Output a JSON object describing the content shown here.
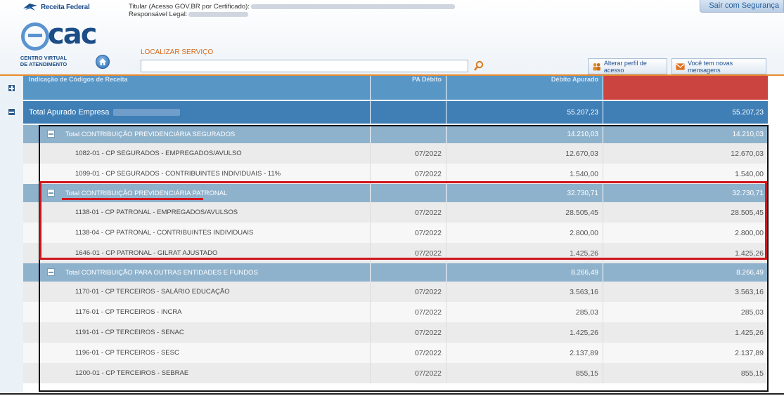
{
  "header": {
    "brand": "Receita Federal",
    "titular_label": "Titular (Acesso GOV.BR por Certificado):",
    "responsavel_label": "Responsável Legal:",
    "logout_label": "Sair com Segurança",
    "logo_text": "cac",
    "logo_sub_line1": "CENTRO VIRTUAL",
    "logo_sub_line2": "DE ATENDIMENTO",
    "search_label": "LOCALIZAR SERVIÇO",
    "search_value": "",
    "btn_perfil": "Alterar perfil de acesso",
    "btn_msg": "Você tem novas mensagens"
  },
  "table": {
    "columns": [
      "Indicação de Códigos de Receita",
      "PA Débito",
      "Débito Apurado",
      ""
    ],
    "total": {
      "label": "Total Apurado Empresa",
      "c3": "55.207,23",
      "c4": "55.207,23"
    },
    "groups": [
      {
        "label": "Total CONTRIBUIÇÃO PREVIDENCIÁRIA SEGURADOS",
        "c3": "14.210,03",
        "c4": "14.210,03",
        "items": [
          {
            "label": "1082-01 - CP SEGURADOS - EMPREGADOS/AVULSO",
            "pa": "07/2022",
            "c3": "12.670,03",
            "c4": "12.670,03"
          },
          {
            "label": "1099-01 - CP SEGURADOS - CONTRIBUINTES INDIVIDUAIS - 11%",
            "pa": "07/2022",
            "c3": "1.540,00",
            "c4": "1.540,00"
          }
        ]
      },
      {
        "label": "Total CONTRIBUIÇÃO PREVIDENCIÁRIA PATRONAL",
        "c3": "32.730,71",
        "c4": "32.730,71",
        "items": [
          {
            "label": "1138-01 - CP PATRONAL - EMPREGADOS/AVULSOS",
            "pa": "07/2022",
            "c3": "28.505,45",
            "c4": "28.505,45"
          },
          {
            "label": "1138-04 - CP PATRONAL - CONTRIBUINTES INDIVIDUAIS",
            "pa": "07/2022",
            "c3": "2.800,00",
            "c4": "2.800,00"
          },
          {
            "label": "1646-01 - CP PATRONAL - GILRAT AJUSTADO",
            "pa": "07/2022",
            "c3": "1.425,26",
            "c4": "1.425,26"
          }
        ]
      },
      {
        "label": "Total CONTRIBUIÇÃO PARA OUTRAS ENTIDADES E FUNDOS",
        "c3": "8.266,49",
        "c4": "8.266,49",
        "items": [
          {
            "label": "1170-01 - CP TERCEIROS - SALÁRIO EDUCAÇÃO",
            "pa": "07/2022",
            "c3": "3.563,16",
            "c4": "3.563,16"
          },
          {
            "label": "1176-01 - CP TERCEIROS - INCRA",
            "pa": "07/2022",
            "c3": "285,03",
            "c4": "285,03"
          },
          {
            "label": "1191-01 - CP TERCEIROS - SENAC",
            "pa": "07/2022",
            "c3": "1.425,26",
            "c4": "1.425,26"
          },
          {
            "label": "1196-01 - CP TERCEIROS - SESC",
            "pa": "07/2022",
            "c3": "2.137,89",
            "c4": "2.137,89"
          },
          {
            "label": "1200-01 - CP TERCEIROS - SEBRAE",
            "pa": "07/2022",
            "c3": "855,15",
            "c4": "855,15"
          }
        ]
      }
    ]
  },
  "colors": {
    "accent_orange": "#e88a2c",
    "header_blue": "#5896c6",
    "total_blue": "#3f7fb6",
    "group_blue": "#8fb2cc",
    "highlight_red": "#d1151d"
  },
  "icons": [
    "receita-bird-icon",
    "home-icon",
    "search-icon",
    "profile-icon",
    "mail-icon",
    "expand-icon",
    "collapse-icon"
  ]
}
